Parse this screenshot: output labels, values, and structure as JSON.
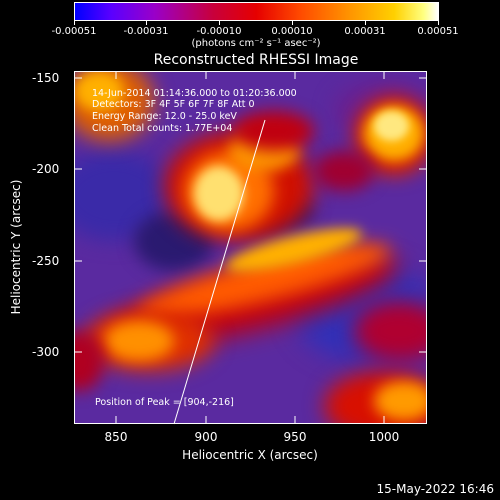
{
  "colorbar": {
    "ticks": [
      "-0.00051",
      "-0.00031",
      "-0.00010",
      "0.00010",
      "0.00031",
      "0.00051"
    ],
    "units": "(photons cm⁻² s⁻¹ asec⁻²)"
  },
  "title": "Reconstructed RHESSI Image",
  "info": {
    "line1": "14-Jun-2014 01:14:36.000 to 01:20:36.000",
    "line2": "Detectors: 3F 4F 5F 6F 7F 8F Att 0",
    "line3": "Energy Range: 12.0 - 25.0 keV",
    "line4": "Clean    Total counts: 1.77E+04",
    "peak": "Position of Peak = [904,-216]"
  },
  "axes": {
    "xlabel": "Heliocentric X (arcsec)",
    "ylabel": "Heliocentric Y (arcsec)",
    "xticks": [
      "850",
      "900",
      "950",
      "1000"
    ],
    "yticks": [
      "-150",
      "-200",
      "-250",
      "-300"
    ]
  },
  "datestamp": "15-May-2022 16:46"
}
